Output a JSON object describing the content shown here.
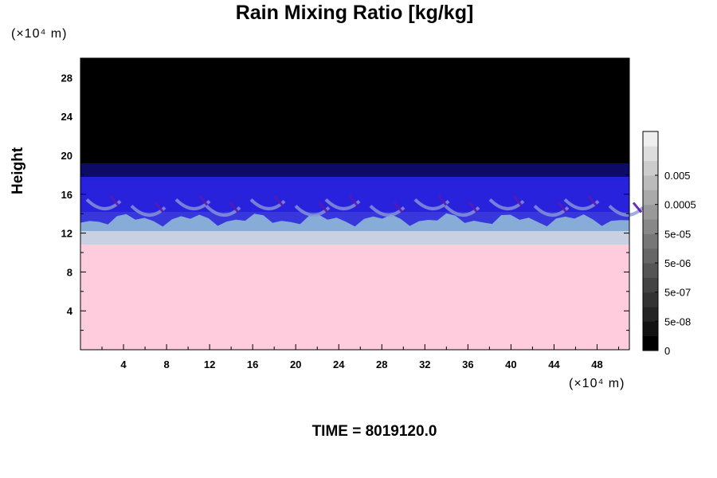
{
  "chart_data": {
    "type": "heatmap",
    "title": "Rain Mixing Ratio [kg/kg]",
    "ylabel": "Height",
    "xlabel": "",
    "x_unit": "(×10⁴ m)",
    "y_unit": "(×10⁴ m)",
    "xlim": [
      0,
      51
    ],
    "ylim": [
      0,
      30
    ],
    "x_ticks": [
      4,
      8,
      12,
      16,
      20,
      24,
      28,
      32,
      36,
      40,
      44,
      48
    ],
    "y_ticks": [
      4,
      8,
      12,
      16,
      20,
      24,
      28
    ],
    "colorbar": {
      "labels": [
        "0",
        "5e-08",
        "5e-07",
        "5e-06",
        "5e-05",
        "0.0005",
        "0.005"
      ],
      "colors": [
        "#000000",
        "#121212",
        "#242424",
        "#333333",
        "#444444",
        "#555555",
        "#666666",
        "#777777",
        "#888888",
        "#999999",
        "#aaaaaa",
        "#bbbbbb",
        "#cccccc",
        "#dddddd",
        "#eeeeee"
      ]
    },
    "layers": [
      {
        "from": 0,
        "to": 10.8,
        "color": "#ffccdd"
      },
      {
        "from": 10.8,
        "to": 12.2,
        "color": "#c8d0e2"
      },
      {
        "from": 12.2,
        "to": 14.2,
        "color": "#88acd8"
      },
      {
        "from": 14.2,
        "to": 17.8,
        "color": "#2222dd"
      },
      {
        "from": 17.8,
        "to": 19.2,
        "color": "#0c0c66"
      },
      {
        "from": 19.2,
        "to": 30,
        "color": "#000000"
      }
    ],
    "time_label": "TIME = 8019120.0"
  }
}
